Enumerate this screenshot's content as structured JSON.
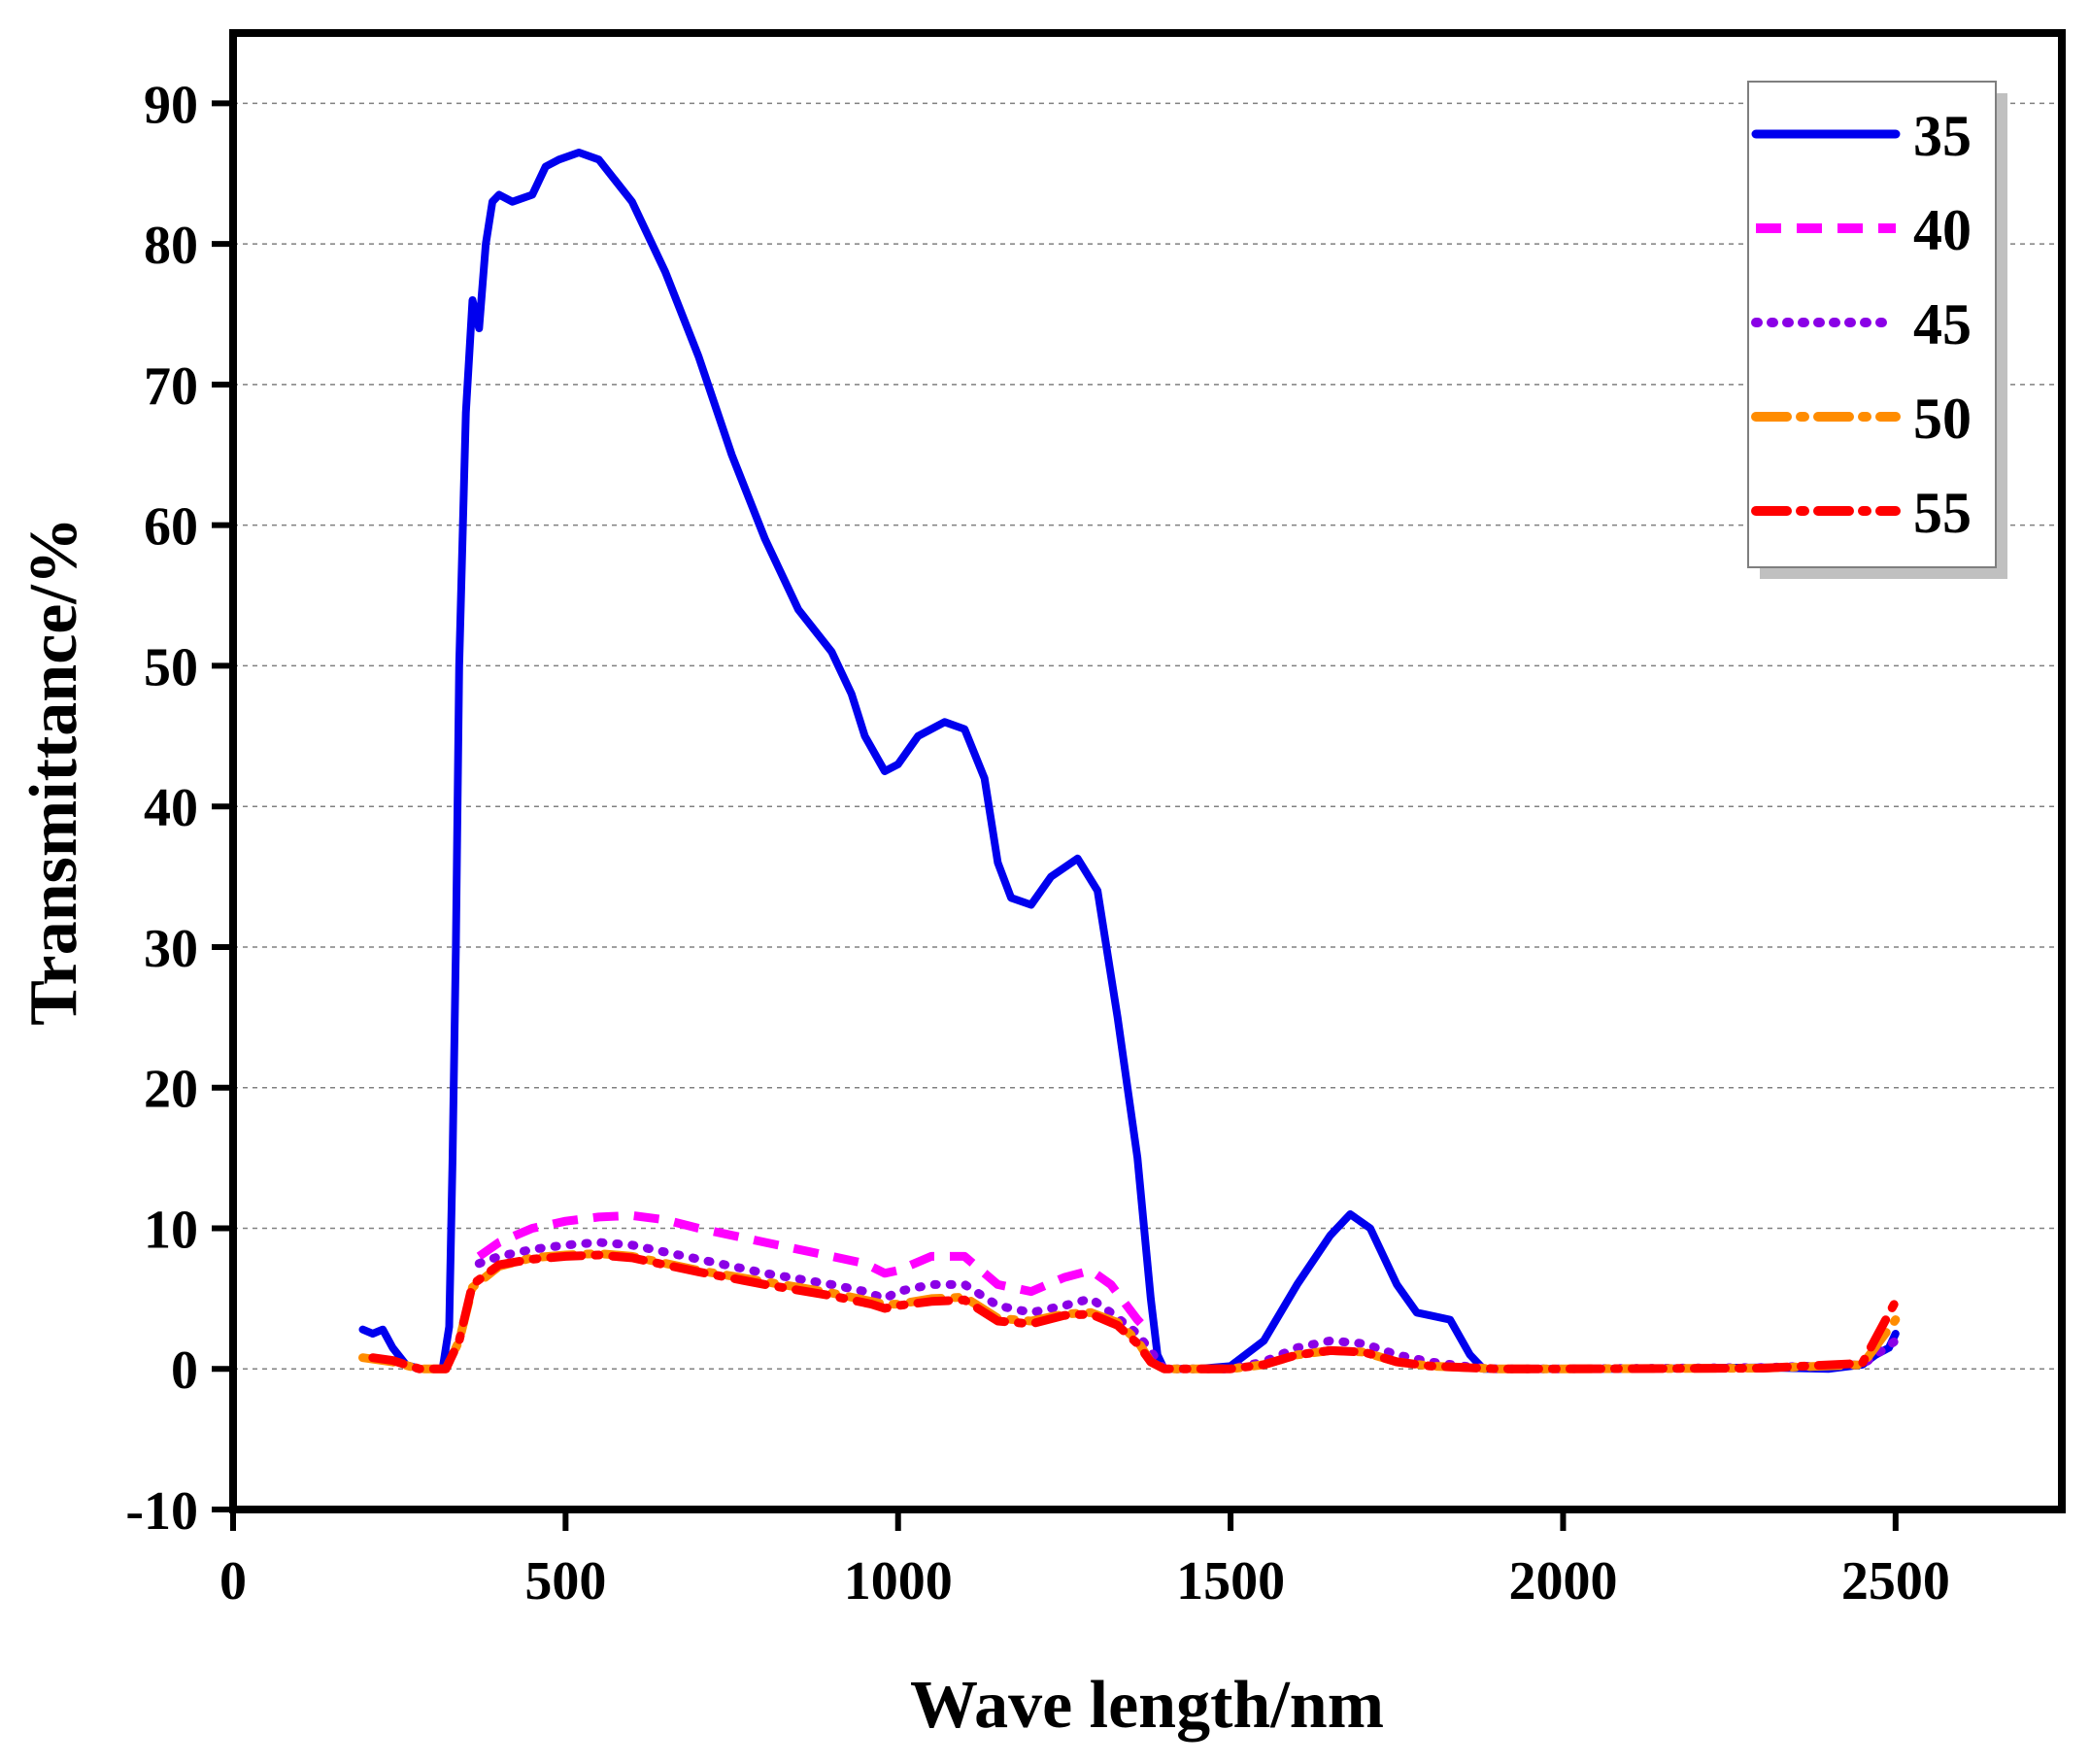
{
  "chart_data": {
    "type": "line",
    "title": "",
    "xlabel": "Wave length/nm",
    "ylabel": "Transmittance/%",
    "xlim": [
      0,
      2750
    ],
    "ylim": [
      -10,
      95
    ],
    "xticks": [
      0,
      500,
      1000,
      1500,
      2000,
      2500
    ],
    "yticks": [
      -10,
      0,
      10,
      20,
      30,
      40,
      50,
      60,
      70,
      80,
      90
    ],
    "xtick_labels": [
      "0",
      "500",
      "1000",
      "1500",
      "2000",
      "2500"
    ],
    "ytick_labels": [
      "-10",
      "0",
      "10",
      "20",
      "30",
      "40",
      "50",
      "60",
      "70",
      "80",
      "90"
    ],
    "grid": "horizontal dotted",
    "legend_position": "top-right",
    "series": [
      {
        "name": "35",
        "color": "#0000ee",
        "style": "solid",
        "points": [
          [
            195,
            2.8
          ],
          [
            210,
            2.5
          ],
          [
            225,
            2.8
          ],
          [
            240,
            1.5
          ],
          [
            260,
            0.3
          ],
          [
            280,
            0
          ],
          [
            300,
            0
          ],
          [
            315,
            0
          ],
          [
            325,
            3
          ],
          [
            330,
            15
          ],
          [
            335,
            30
          ],
          [
            340,
            50
          ],
          [
            350,
            68
          ],
          [
            360,
            76
          ],
          [
            370,
            74
          ],
          [
            380,
            80
          ],
          [
            390,
            83
          ],
          [
            400,
            83.5
          ],
          [
            420,
            83
          ],
          [
            450,
            83.5
          ],
          [
            470,
            85.5
          ],
          [
            490,
            86
          ],
          [
            520,
            86.5
          ],
          [
            550,
            86
          ],
          [
            600,
            83
          ],
          [
            650,
            78
          ],
          [
            700,
            72
          ],
          [
            750,
            65
          ],
          [
            800,
            59
          ],
          [
            850,
            54
          ],
          [
            900,
            51
          ],
          [
            930,
            48
          ],
          [
            950,
            45
          ],
          [
            980,
            42.5
          ],
          [
            1000,
            43
          ],
          [
            1030,
            45
          ],
          [
            1070,
            46
          ],
          [
            1100,
            45.5
          ],
          [
            1130,
            42
          ],
          [
            1150,
            36
          ],
          [
            1170,
            33.5
          ],
          [
            1200,
            33
          ],
          [
            1230,
            35
          ],
          [
            1270,
            36.3
          ],
          [
            1300,
            34
          ],
          [
            1330,
            25
          ],
          [
            1360,
            15
          ],
          [
            1380,
            5
          ],
          [
            1390,
            1
          ],
          [
            1400,
            0
          ],
          [
            1450,
            0
          ],
          [
            1500,
            0.2
          ],
          [
            1550,
            2
          ],
          [
            1600,
            6
          ],
          [
            1650,
            9.5
          ],
          [
            1680,
            11
          ],
          [
            1710,
            10
          ],
          [
            1750,
            6
          ],
          [
            1780,
            4
          ],
          [
            1800,
            3.8
          ],
          [
            1830,
            3.5
          ],
          [
            1860,
            1
          ],
          [
            1880,
            0
          ],
          [
            1950,
            0
          ],
          [
            2100,
            0
          ],
          [
            2300,
            0.1
          ],
          [
            2400,
            0
          ],
          [
            2450,
            0.3
          ],
          [
            2470,
            1
          ],
          [
            2490,
            1.5
          ],
          [
            2500,
            2.5
          ]
        ]
      },
      {
        "name": "40",
        "color": "#ff00ff",
        "style": "dashed",
        "points": [
          [
            370,
            8
          ],
          [
            400,
            9
          ],
          [
            450,
            10
          ],
          [
            500,
            10.5
          ],
          [
            550,
            10.8
          ],
          [
            600,
            10.9
          ],
          [
            650,
            10.6
          ],
          [
            700,
            10
          ],
          [
            800,
            9
          ],
          [
            900,
            8
          ],
          [
            950,
            7.5
          ],
          [
            980,
            6.8
          ],
          [
            1000,
            7
          ],
          [
            1050,
            8
          ],
          [
            1100,
            8
          ],
          [
            1150,
            6
          ],
          [
            1200,
            5.5
          ],
          [
            1250,
            6.5
          ],
          [
            1290,
            7
          ],
          [
            1320,
            6
          ],
          [
            1360,
            3.5
          ],
          [
            1380,
            2.5
          ]
        ]
      },
      {
        "name": "45",
        "color": "#8a00e6",
        "style": "dotted",
        "points": [
          [
            370,
            7.5
          ],
          [
            400,
            8
          ],
          [
            450,
            8.5
          ],
          [
            500,
            8.8
          ],
          [
            550,
            9
          ],
          [
            600,
            8.8
          ],
          [
            700,
            7.8
          ],
          [
            800,
            6.8
          ],
          [
            900,
            6
          ],
          [
            950,
            5.5
          ],
          [
            980,
            5
          ],
          [
            1000,
            5.5
          ],
          [
            1050,
            6
          ],
          [
            1100,
            6
          ],
          [
            1150,
            4.5
          ],
          [
            1200,
            4
          ],
          [
            1250,
            4.5
          ],
          [
            1290,
            5
          ],
          [
            1320,
            4
          ],
          [
            1360,
            2.5
          ],
          [
            1400,
            0
          ],
          [
            1500,
            0
          ],
          [
            1550,
            0.5
          ],
          [
            1600,
            1.5
          ],
          [
            1650,
            2
          ],
          [
            1700,
            1.8
          ],
          [
            1750,
            1
          ],
          [
            1800,
            0.5
          ],
          [
            1850,
            0.2
          ],
          [
            1900,
            0
          ],
          [
            2000,
            0
          ],
          [
            2300,
            0.1
          ],
          [
            2450,
            0.3
          ],
          [
            2500,
            2
          ]
        ]
      },
      {
        "name": "50",
        "color": "#ff8c00",
        "style": "dashdot",
        "points": [
          [
            195,
            0.8
          ],
          [
            240,
            0.5
          ],
          [
            280,
            0
          ],
          [
            320,
            0
          ],
          [
            340,
            2
          ],
          [
            360,
            5.8
          ],
          [
            400,
            7.3
          ],
          [
            450,
            7.9
          ],
          [
            500,
            8.1
          ],
          [
            550,
            8.2
          ],
          [
            600,
            8
          ],
          [
            700,
            7
          ],
          [
            800,
            6.2
          ],
          [
            900,
            5.4
          ],
          [
            960,
            4.8
          ],
          [
            980,
            4.6
          ],
          [
            1000,
            4.6
          ],
          [
            1050,
            5
          ],
          [
            1100,
            5.1
          ],
          [
            1150,
            3.6
          ],
          [
            1200,
            3.4
          ],
          [
            1250,
            3.9
          ],
          [
            1290,
            4
          ],
          [
            1330,
            3.3
          ],
          [
            1360,
            2
          ],
          [
            1380,
            0.5
          ],
          [
            1400,
            0
          ],
          [
            1500,
            0
          ],
          [
            1550,
            0.3
          ],
          [
            1600,
            1
          ],
          [
            1650,
            1.3
          ],
          [
            1700,
            1.2
          ],
          [
            1750,
            0.5
          ],
          [
            1800,
            0.2
          ],
          [
            1900,
            0
          ],
          [
            2000,
            0
          ],
          [
            2300,
            0.05
          ],
          [
            2450,
            0.3
          ],
          [
            2500,
            3.5
          ]
        ]
      },
      {
        "name": "55",
        "color": "#ff0000",
        "style": "dashdot",
        "points": [
          [
            210,
            0.8
          ],
          [
            240,
            0.6
          ],
          [
            280,
            0
          ],
          [
            320,
            0
          ],
          [
            340,
            2
          ],
          [
            360,
            6
          ],
          [
            400,
            7.4
          ],
          [
            450,
            7.8
          ],
          [
            500,
            8
          ],
          [
            550,
            8.1
          ],
          [
            600,
            7.9
          ],
          [
            700,
            6.9
          ],
          [
            800,
            6
          ],
          [
            900,
            5.2
          ],
          [
            960,
            4.6
          ],
          [
            980,
            4.3
          ],
          [
            1000,
            4.5
          ],
          [
            1050,
            4.8
          ],
          [
            1100,
            4.9
          ],
          [
            1150,
            3.4
          ],
          [
            1200,
            3.2
          ],
          [
            1250,
            3.8
          ],
          [
            1290,
            3.9
          ],
          [
            1330,
            3.1
          ],
          [
            1360,
            1.8
          ],
          [
            1380,
            0.5
          ],
          [
            1400,
            0
          ],
          [
            1500,
            0
          ],
          [
            1550,
            0.3
          ],
          [
            1600,
            1
          ],
          [
            1650,
            1.3
          ],
          [
            1700,
            1.2
          ],
          [
            1750,
            0.5
          ],
          [
            1800,
            0.2
          ],
          [
            1900,
            0
          ],
          [
            2000,
            0
          ],
          [
            2300,
            0.05
          ],
          [
            2450,
            0.4
          ],
          [
            2500,
            4.8
          ]
        ]
      }
    ]
  }
}
